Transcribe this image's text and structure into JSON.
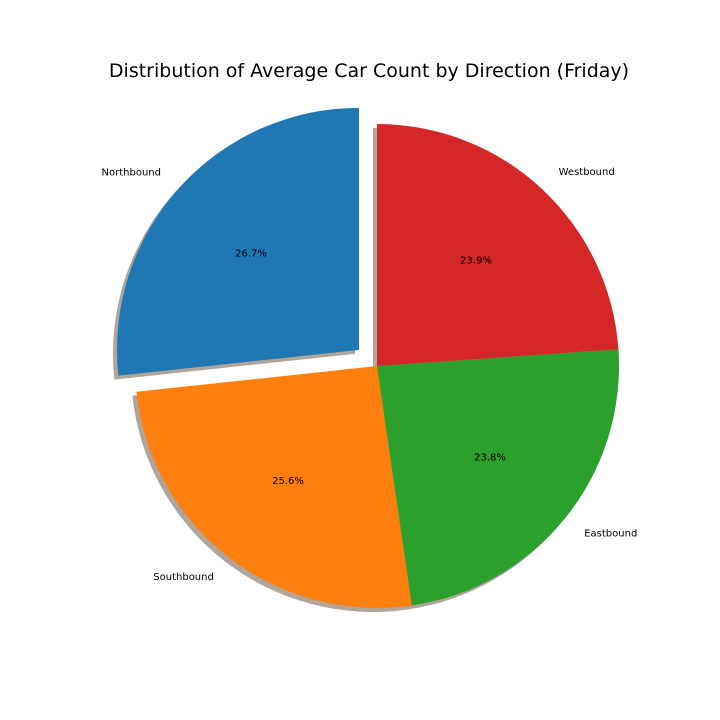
{
  "chart_data": {
    "type": "pie",
    "title": "Distribution of Average Car Count by Direction (Friday)",
    "slices": [
      {
        "label": "Northbound",
        "value": 26.7,
        "pct_label": "26.7%",
        "color": "#1f77b4",
        "explode": true
      },
      {
        "label": "Southbound",
        "value": 25.6,
        "pct_label": "25.6%",
        "color": "#ff7f0e",
        "explode": false
      },
      {
        "label": "Eastbound",
        "value": 23.8,
        "pct_label": "23.8%",
        "color": "#2ca02c",
        "explode": false
      },
      {
        "label": "Westbound",
        "value": 23.9,
        "pct_label": "23.9%",
        "color": "#d62728",
        "explode": false
      }
    ],
    "start_angle_deg": 90,
    "direction": "counterclockwise",
    "shadow": true
  }
}
